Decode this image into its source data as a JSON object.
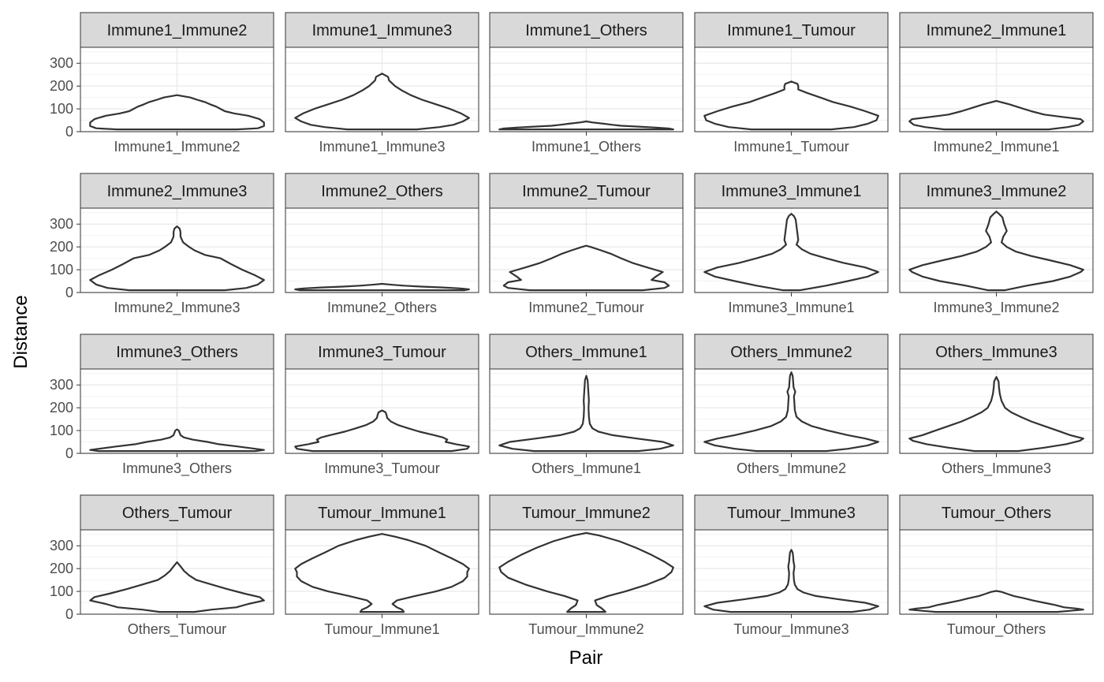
{
  "chart_data": {
    "type": "violin",
    "xlabel": "Pair",
    "ylabel": "Distance",
    "ylim": [
      0,
      370
    ],
    "y_ticks": [
      0,
      100,
      200,
      300
    ],
    "grid": true,
    "layout": {
      "rows": 4,
      "cols": 5
    },
    "panels": [
      {
        "name": "Immune1_Immune2",
        "max": 160,
        "profile": [
          [
            10,
            0.69
          ],
          [
            15,
            0.93
          ],
          [
            25,
            1.0
          ],
          [
            40,
            1.0
          ],
          [
            55,
            0.95
          ],
          [
            70,
            0.82
          ],
          [
            80,
            0.66
          ],
          [
            90,
            0.55
          ],
          [
            100,
            0.5
          ],
          [
            110,
            0.45
          ],
          [
            120,
            0.38
          ],
          [
            130,
            0.32
          ],
          [
            140,
            0.23
          ],
          [
            150,
            0.15
          ],
          [
            160,
            0.0
          ]
        ]
      },
      {
        "name": "Immune1_Immune3",
        "max": 255,
        "profile": [
          [
            10,
            0.4
          ],
          [
            20,
            0.66
          ],
          [
            30,
            0.82
          ],
          [
            45,
            0.93
          ],
          [
            60,
            1.0
          ],
          [
            80,
            0.91
          ],
          [
            100,
            0.78
          ],
          [
            120,
            0.62
          ],
          [
            140,
            0.46
          ],
          [
            160,
            0.33
          ],
          [
            180,
            0.23
          ],
          [
            200,
            0.15
          ],
          [
            225,
            0.08
          ],
          [
            240,
            0.07
          ],
          [
            255,
            0.0
          ]
        ]
      },
      {
        "name": "Immune1_Others",
        "max": 45,
        "profile": [
          [
            10,
            1.0
          ],
          [
            14,
            0.95
          ],
          [
            18,
            0.8
          ],
          [
            22,
            0.6
          ],
          [
            26,
            0.4
          ],
          [
            30,
            0.3
          ],
          [
            35,
            0.2
          ],
          [
            40,
            0.08
          ],
          [
            45,
            0.0
          ]
        ]
      },
      {
        "name": "Immune1_Tumour",
        "max": 220,
        "profile": [
          [
            10,
            0.46
          ],
          [
            20,
            0.72
          ],
          [
            35,
            0.88
          ],
          [
            50,
            0.98
          ],
          [
            70,
            1.0
          ],
          [
            90,
            0.85
          ],
          [
            110,
            0.68
          ],
          [
            130,
            0.48
          ],
          [
            150,
            0.33
          ],
          [
            170,
            0.18
          ],
          [
            185,
            0.08
          ],
          [
            200,
            0.08
          ],
          [
            210,
            0.07
          ],
          [
            220,
            0.0
          ]
        ]
      },
      {
        "name": "Immune2_Immune1",
        "max": 135,
        "profile": [
          [
            10,
            0.6
          ],
          [
            20,
            0.82
          ],
          [
            30,
            0.95
          ],
          [
            45,
            1.0
          ],
          [
            55,
            0.97
          ],
          [
            65,
            0.75
          ],
          [
            75,
            0.55
          ],
          [
            90,
            0.4
          ],
          [
            105,
            0.27
          ],
          [
            120,
            0.15
          ],
          [
            135,
            0.0
          ]
        ]
      },
      {
        "name": "Immune2_Immune3",
        "max": 290,
        "profile": [
          [
            10,
            0.55
          ],
          [
            20,
            0.8
          ],
          [
            35,
            0.93
          ],
          [
            55,
            1.0
          ],
          [
            75,
            0.9
          ],
          [
            100,
            0.75
          ],
          [
            125,
            0.62
          ],
          [
            150,
            0.5
          ],
          [
            165,
            0.32
          ],
          [
            185,
            0.2
          ],
          [
            200,
            0.14
          ],
          [
            220,
            0.07
          ],
          [
            245,
            0.04
          ],
          [
            265,
            0.04
          ],
          [
            280,
            0.03
          ],
          [
            290,
            0.0
          ]
        ]
      },
      {
        "name": "Immune2_Others",
        "max": 38,
        "profile": [
          [
            10,
            0.95
          ],
          [
            14,
            1.0
          ],
          [
            18,
            0.9
          ],
          [
            22,
            0.7
          ],
          [
            26,
            0.45
          ],
          [
            30,
            0.25
          ],
          [
            34,
            0.12
          ],
          [
            38,
            0.0
          ]
        ]
      },
      {
        "name": "Immune2_Tumour",
        "max": 205,
        "profile": [
          [
            10,
            0.65
          ],
          [
            20,
            0.9
          ],
          [
            30,
            0.95
          ],
          [
            45,
            0.9
          ],
          [
            55,
            0.75
          ],
          [
            70,
            0.8
          ],
          [
            90,
            0.88
          ],
          [
            110,
            0.7
          ],
          [
            130,
            0.53
          ],
          [
            150,
            0.4
          ],
          [
            170,
            0.28
          ],
          [
            185,
            0.17
          ],
          [
            200,
            0.05
          ],
          [
            205,
            0.0
          ]
        ]
      },
      {
        "name": "Immune3_Immune1",
        "max": 345,
        "profile": [
          [
            10,
            0.1
          ],
          [
            30,
            0.4
          ],
          [
            50,
            0.65
          ],
          [
            70,
            0.88
          ],
          [
            90,
            1.0
          ],
          [
            110,
            0.85
          ],
          [
            130,
            0.6
          ],
          [
            150,
            0.4
          ],
          [
            170,
            0.22
          ],
          [
            190,
            0.12
          ],
          [
            210,
            0.06
          ],
          [
            230,
            0.08
          ],
          [
            260,
            0.07
          ],
          [
            290,
            0.06
          ],
          [
            320,
            0.05
          ],
          [
            335,
            0.03
          ],
          [
            345,
            0.0
          ]
        ]
      },
      {
        "name": "Immune3_Immune2",
        "max": 355,
        "profile": [
          [
            10,
            0.1
          ],
          [
            30,
            0.35
          ],
          [
            50,
            0.65
          ],
          [
            70,
            0.85
          ],
          [
            90,
            0.97
          ],
          [
            100,
            1.0
          ],
          [
            120,
            0.85
          ],
          [
            140,
            0.63
          ],
          [
            160,
            0.4
          ],
          [
            180,
            0.22
          ],
          [
            200,
            0.12
          ],
          [
            220,
            0.06
          ],
          [
            245,
            0.08
          ],
          [
            270,
            0.12
          ],
          [
            300,
            0.09
          ],
          [
            330,
            0.07
          ],
          [
            345,
            0.03
          ],
          [
            355,
            0.0
          ]
        ]
      },
      {
        "name": "Immune3_Others",
        "max": 105,
        "profile": [
          [
            10,
            0.9
          ],
          [
            15,
            1.0
          ],
          [
            20,
            0.9
          ],
          [
            30,
            0.7
          ],
          [
            40,
            0.48
          ],
          [
            50,
            0.35
          ],
          [
            60,
            0.18
          ],
          [
            70,
            0.08
          ],
          [
            80,
            0.04
          ],
          [
            90,
            0.03
          ],
          [
            100,
            0.02
          ],
          [
            105,
            0.0
          ]
        ]
      },
      {
        "name": "Immune3_Tumour",
        "max": 188,
        "profile": [
          [
            10,
            0.8
          ],
          [
            20,
            0.98
          ],
          [
            30,
            1.0
          ],
          [
            40,
            0.85
          ],
          [
            50,
            0.73
          ],
          [
            60,
            0.75
          ],
          [
            70,
            0.7
          ],
          [
            80,
            0.6
          ],
          [
            95,
            0.43
          ],
          [
            110,
            0.3
          ],
          [
            125,
            0.18
          ],
          [
            140,
            0.1
          ],
          [
            155,
            0.06
          ],
          [
            170,
            0.05
          ],
          [
            180,
            0.04
          ],
          [
            188,
            0.0
          ]
        ]
      },
      {
        "name": "Others_Immune1",
        "max": 340,
        "profile": [
          [
            10,
            0.6
          ],
          [
            20,
            0.85
          ],
          [
            35,
            1.0
          ],
          [
            50,
            0.88
          ],
          [
            65,
            0.58
          ],
          [
            80,
            0.3
          ],
          [
            95,
            0.14
          ],
          [
            110,
            0.07
          ],
          [
            130,
            0.04
          ],
          [
            160,
            0.03
          ],
          [
            200,
            0.025
          ],
          [
            230,
            0.03
          ],
          [
            260,
            0.025
          ],
          [
            290,
            0.02
          ],
          [
            320,
            0.015
          ],
          [
            340,
            0.0
          ]
        ]
      },
      {
        "name": "Others_Immune2",
        "max": 355,
        "profile": [
          [
            10,
            0.4
          ],
          [
            20,
            0.65
          ],
          [
            35,
            0.88
          ],
          [
            50,
            1.0
          ],
          [
            65,
            0.85
          ],
          [
            80,
            0.65
          ],
          [
            100,
            0.42
          ],
          [
            120,
            0.23
          ],
          [
            140,
            0.12
          ],
          [
            160,
            0.06
          ],
          [
            190,
            0.04
          ],
          [
            220,
            0.035
          ],
          [
            250,
            0.03
          ],
          [
            270,
            0.045
          ],
          [
            290,
            0.025
          ],
          [
            320,
            0.02
          ],
          [
            340,
            0.015
          ],
          [
            355,
            0.0
          ]
        ]
      },
      {
        "name": "Others_Immune3",
        "max": 335,
        "profile": [
          [
            10,
            0.25
          ],
          [
            25,
            0.55
          ],
          [
            40,
            0.8
          ],
          [
            55,
            0.96
          ],
          [
            65,
            1.0
          ],
          [
            80,
            0.85
          ],
          [
            100,
            0.7
          ],
          [
            120,
            0.55
          ],
          [
            140,
            0.4
          ],
          [
            160,
            0.28
          ],
          [
            180,
            0.17
          ],
          [
            200,
            0.1
          ],
          [
            230,
            0.06
          ],
          [
            260,
            0.04
          ],
          [
            290,
            0.03
          ],
          [
            315,
            0.025
          ],
          [
            335,
            0.0
          ]
        ]
      },
      {
        "name": "Others_Tumour",
        "max": 228,
        "profile": [
          [
            10,
            0.2
          ],
          [
            20,
            0.4
          ],
          [
            30,
            0.68
          ],
          [
            45,
            0.82
          ],
          [
            60,
            1.0
          ],
          [
            75,
            0.95
          ],
          [
            90,
            0.78
          ],
          [
            110,
            0.58
          ],
          [
            130,
            0.4
          ],
          [
            150,
            0.22
          ],
          [
            170,
            0.14
          ],
          [
            190,
            0.08
          ],
          [
            210,
            0.04
          ],
          [
            228,
            0.0
          ]
        ]
      },
      {
        "name": "Tumour_Immune1",
        "max": 352,
        "profile": [
          [
            10,
            0.25
          ],
          [
            20,
            0.23
          ],
          [
            30,
            0.17
          ],
          [
            45,
            0.12
          ],
          [
            60,
            0.17
          ],
          [
            80,
            0.38
          ],
          [
            100,
            0.62
          ],
          [
            120,
            0.8
          ],
          [
            145,
            0.93
          ],
          [
            165,
            0.98
          ],
          [
            185,
            0.98
          ],
          [
            200,
            1.0
          ],
          [
            220,
            0.93
          ],
          [
            245,
            0.8
          ],
          [
            270,
            0.66
          ],
          [
            300,
            0.5
          ],
          [
            325,
            0.3
          ],
          [
            340,
            0.15
          ],
          [
            352,
            0.0
          ]
        ]
      },
      {
        "name": "Tumour_Immune2",
        "max": 356,
        "profile": [
          [
            10,
            0.22
          ],
          [
            25,
            0.18
          ],
          [
            40,
            0.12
          ],
          [
            60,
            0.1
          ],
          [
            80,
            0.25
          ],
          [
            100,
            0.45
          ],
          [
            130,
            0.7
          ],
          [
            160,
            0.9
          ],
          [
            185,
            0.98
          ],
          [
            205,
            1.0
          ],
          [
            230,
            0.9
          ],
          [
            260,
            0.75
          ],
          [
            290,
            0.58
          ],
          [
            320,
            0.38
          ],
          [
            345,
            0.15
          ],
          [
            356,
            0.0
          ]
        ]
      },
      {
        "name": "Tumour_Immune3",
        "max": 282,
        "profile": [
          [
            10,
            0.7
          ],
          [
            20,
            0.9
          ],
          [
            35,
            1.0
          ],
          [
            50,
            0.85
          ],
          [
            65,
            0.55
          ],
          [
            80,
            0.28
          ],
          [
            95,
            0.14
          ],
          [
            110,
            0.07
          ],
          [
            130,
            0.04
          ],
          [
            150,
            0.03
          ],
          [
            180,
            0.025
          ],
          [
            210,
            0.035
          ],
          [
            230,
            0.025
          ],
          [
            255,
            0.02
          ],
          [
            270,
            0.015
          ],
          [
            282,
            0.0
          ]
        ]
      },
      {
        "name": "Tumour_Others",
        "max": 102,
        "profile": [
          [
            10,
            0.7
          ],
          [
            15,
            0.85
          ],
          [
            20,
            1.0
          ],
          [
            25,
            0.92
          ],
          [
            30,
            0.78
          ],
          [
            40,
            0.68
          ],
          [
            50,
            0.55
          ],
          [
            60,
            0.42
          ],
          [
            70,
            0.32
          ],
          [
            80,
            0.2
          ],
          [
            90,
            0.12
          ],
          [
            98,
            0.06
          ],
          [
            102,
            0.0
          ]
        ]
      }
    ]
  }
}
